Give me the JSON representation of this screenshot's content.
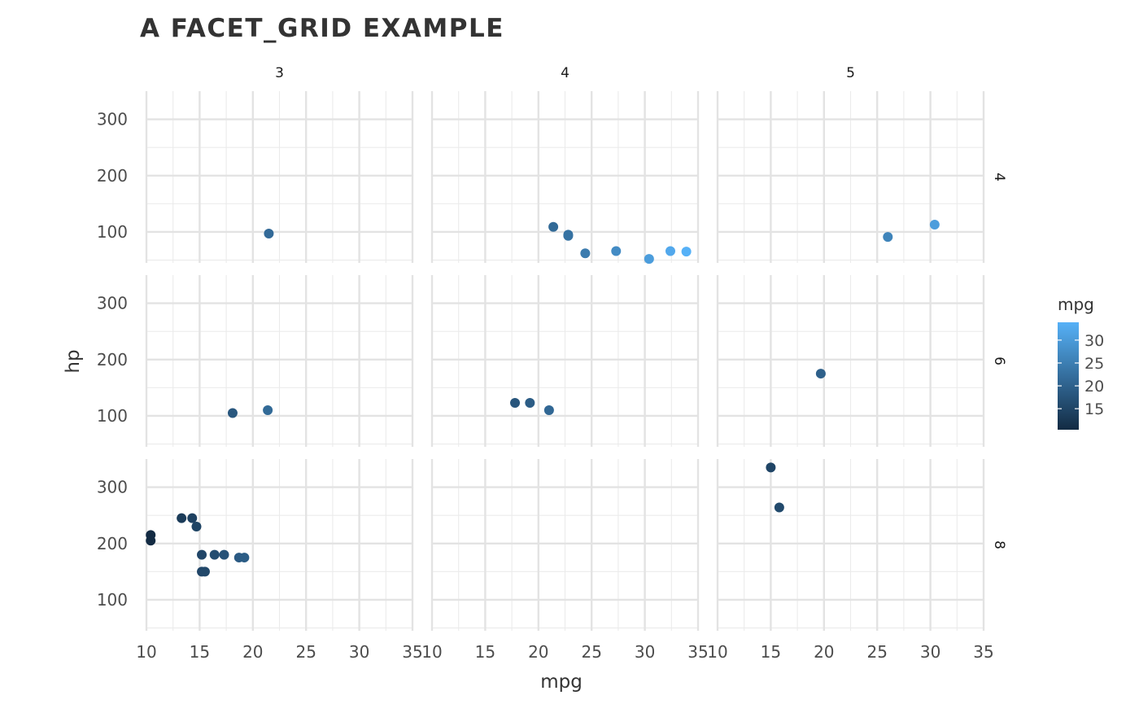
{
  "chart_data": {
    "type": "scatter",
    "title": "A FACET_GRID EXAMPLE",
    "xlabel": "mpg",
    "ylabel": "hp",
    "facet_cols_values": [
      "3",
      "4",
      "5"
    ],
    "facet_rows_values": [
      "4",
      "6",
      "8"
    ],
    "xlim": [
      10,
      35
    ],
    "ylim": [
      45,
      350
    ],
    "x_ticks": [
      "10",
      "15",
      "20",
      "25",
      "30",
      "35"
    ],
    "y_ticks": [
      "100",
      "200",
      "300"
    ],
    "grid": true,
    "legend": {
      "title": "mpg",
      "position": "right",
      "ticks": [
        "15",
        "20",
        "25",
        "30"
      ],
      "range": [
        10.4,
        33.9
      ],
      "color_low": "#132B43",
      "color_high": "#56B1F7"
    },
    "facets": [
      {
        "col": "3",
        "row": "4",
        "points": [
          {
            "x": 21.5,
            "y": 97
          }
        ]
      },
      {
        "col": "4",
        "row": "4",
        "points": [
          {
            "x": 22.8,
            "y": 93
          },
          {
            "x": 24.4,
            "y": 62
          },
          {
            "x": 22.8,
            "y": 95
          },
          {
            "x": 32.4,
            "y": 66
          },
          {
            "x": 30.4,
            "y": 52
          },
          {
            "x": 33.9,
            "y": 65
          },
          {
            "x": 27.3,
            "y": 66
          },
          {
            "x": 21.4,
            "y": 109
          }
        ]
      },
      {
        "col": "5",
        "row": "4",
        "points": [
          {
            "x": 26.0,
            "y": 91
          },
          {
            "x": 30.4,
            "y": 113
          }
        ]
      },
      {
        "col": "3",
        "row": "6",
        "points": [
          {
            "x": 21.4,
            "y": 110
          },
          {
            "x": 18.1,
            "y": 105
          }
        ]
      },
      {
        "col": "4",
        "row": "6",
        "points": [
          {
            "x": 21.0,
            "y": 110
          },
          {
            "x": 19.2,
            "y": 123
          },
          {
            "x": 17.8,
            "y": 123
          }
        ]
      },
      {
        "col": "5",
        "row": "6",
        "points": [
          {
            "x": 19.7,
            "y": 175
          }
        ]
      },
      {
        "col": "3",
        "row": "8",
        "points": [
          {
            "x": 10.4,
            "y": 205
          },
          {
            "x": 10.4,
            "y": 215
          },
          {
            "x": 13.3,
            "y": 245
          },
          {
            "x": 14.3,
            "y": 245
          },
          {
            "x": 14.7,
            "y": 230
          },
          {
            "x": 15.2,
            "y": 180
          },
          {
            "x": 15.2,
            "y": 150
          },
          {
            "x": 15.5,
            "y": 150
          },
          {
            "x": 16.4,
            "y": 180
          },
          {
            "x": 17.3,
            "y": 180
          },
          {
            "x": 18.7,
            "y": 175
          },
          {
            "x": 19.2,
            "y": 175
          }
        ]
      },
      {
        "col": "4",
        "row": "8",
        "points": []
      },
      {
        "col": "5",
        "row": "8",
        "points": [
          {
            "x": 15.0,
            "y": 335
          },
          {
            "x": 15.8,
            "y": 264
          }
        ]
      }
    ]
  }
}
